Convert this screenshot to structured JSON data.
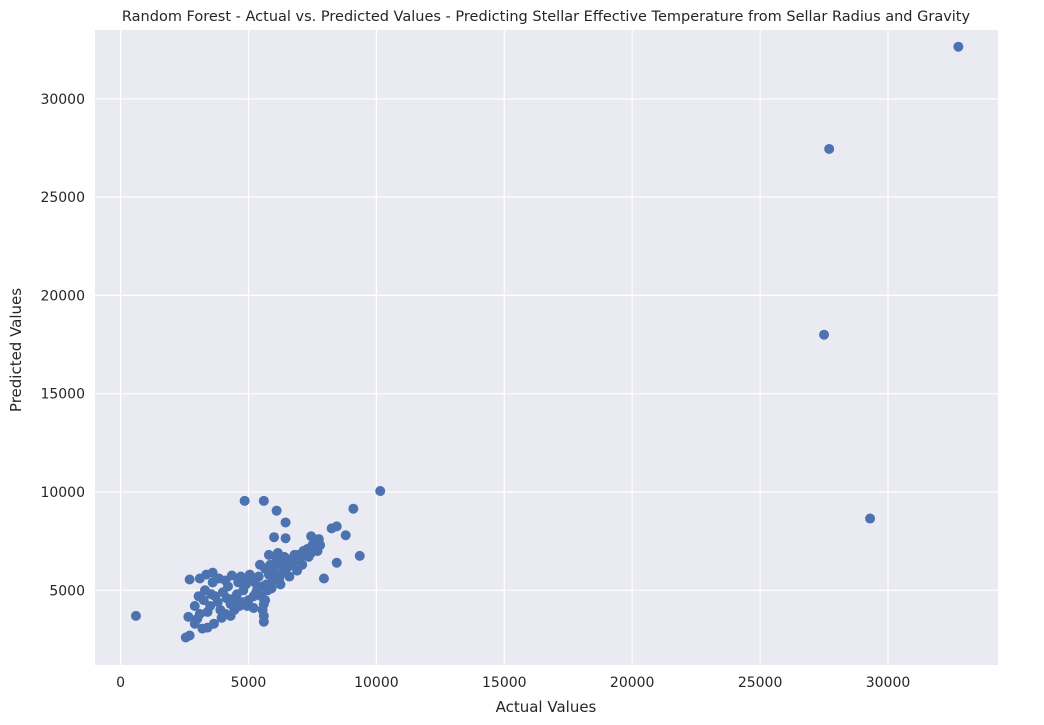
{
  "chart_data": {
    "type": "scatter",
    "title": "Random Forest - Actual vs. Predicted Values - Predicting Stellar Effective Temperature from Sellar Radius and Gravity",
    "xlabel": "Actual Values",
    "ylabel": "Predicted Values",
    "xlim": [
      -1000,
      34300
    ],
    "ylim": [
      1200,
      33500
    ],
    "xticks": [
      0,
      5000,
      10000,
      15000,
      20000,
      25000,
      30000
    ],
    "yticks": [
      5000,
      10000,
      15000,
      20000,
      25000,
      30000
    ],
    "xtick_labels": [
      "0",
      "5000",
      "10000",
      "15000",
      "20000",
      "25000",
      "30000"
    ],
    "ytick_labels": [
      "5000",
      "10000",
      "15000",
      "20000",
      "25000",
      "30000"
    ],
    "grid": true,
    "style": {
      "background": "#eaeaf2",
      "grid_color": "#ffffff",
      "marker_color": "#4c72b0"
    },
    "points": [
      [
        32750,
        32650
      ],
      [
        27700,
        27450
      ],
      [
        27500,
        18000
      ],
      [
        29300,
        8650
      ],
      [
        10150,
        10050
      ],
      [
        9100,
        9150
      ],
      [
        4850,
        9550
      ],
      [
        5600,
        9550
      ],
      [
        6100,
        9050
      ],
      [
        6450,
        8450
      ],
      [
        8450,
        8250
      ],
      [
        8250,
        8150
      ],
      [
        8800,
        7800
      ],
      [
        9350,
        6750
      ],
      [
        8450,
        6400
      ],
      [
        7950,
        5600
      ],
      [
        7450,
        7750
      ],
      [
        7750,
        7600
      ],
      [
        6000,
        7700
      ],
      [
        6450,
        7650
      ],
      [
        600,
        3700
      ],
      [
        2550,
        2600
      ],
      [
        2700,
        2700
      ],
      [
        2650,
        3650
      ],
      [
        2700,
        5550
      ],
      [
        3100,
        5600
      ],
      [
        3350,
        5800
      ],
      [
        3600,
        5900
      ],
      [
        2900,
        3300
      ],
      [
        3200,
        3050
      ],
      [
        3000,
        3550
      ],
      [
        3400,
        3900
      ],
      [
        3250,
        4500
      ],
      [
        3700,
        4700
      ],
      [
        3500,
        4200
      ],
      [
        3900,
        4000
      ],
      [
        4100,
        3800
      ],
      [
        4300,
        4300
      ],
      [
        4000,
        4900
      ],
      [
        4200,
        5200
      ],
      [
        4450,
        4600
      ],
      [
        4650,
        4200
      ],
      [
        4800,
        5000
      ],
      [
        5000,
        4500
      ],
      [
        5200,
        4100
      ],
      [
        5100,
        5500
      ],
      [
        5350,
        5100
      ],
      [
        5500,
        4700
      ],
      [
        5600,
        4300
      ],
      [
        5600,
        3400
      ],
      [
        5600,
        3700
      ],
      [
        5550,
        4000
      ],
      [
        5400,
        5700
      ],
      [
        5700,
        5300
      ],
      [
        5800,
        5800
      ],
      [
        5900,
        5100
      ],
      [
        6000,
        6200
      ],
      [
        6200,
        5600
      ],
      [
        6300,
        6300
      ],
      [
        6400,
        5900
      ],
      [
        6500,
        6600
      ],
      [
        6700,
        6300
      ],
      [
        6800,
        6800
      ],
      [
        7000,
        6500
      ],
      [
        7200,
        6900
      ],
      [
        7300,
        7100
      ],
      [
        7500,
        7300
      ],
      [
        7600,
        7200
      ],
      [
        7700,
        7000
      ],
      [
        7800,
        7300
      ],
      [
        3300,
        5000
      ],
      [
        3600,
        5400
      ],
      [
        3850,
        5600
      ],
      [
        4100,
        5500
      ],
      [
        4350,
        5750
      ],
      [
        4600,
        5400
      ],
      [
        4850,
        5600
      ],
      [
        5050,
        5800
      ],
      [
        4900,
        5300
      ],
      [
        4700,
        5700
      ],
      [
        5800,
        6800
      ],
      [
        6100,
        6600
      ],
      [
        6900,
        6000
      ],
      [
        7100,
        6300
      ],
      [
        6600,
        5700
      ],
      [
        6250,
        5300
      ],
      [
        5950,
        5500
      ],
      [
        5750,
        5000
      ],
      [
        5300,
        4900
      ],
      [
        5200,
        4700
      ],
      [
        4550,
        4800
      ],
      [
        4750,
        4400
      ],
      [
        4300,
        3700
      ],
      [
        3950,
        3600
      ],
      [
        3650,
        3300
      ],
      [
        3400,
        3100
      ],
      [
        3100,
        3800
      ],
      [
        2900,
        4200
      ],
      [
        3050,
        4700
      ],
      [
        5450,
        6300
      ],
      [
        5650,
        6100
      ],
      [
        5850,
        6300
      ],
      [
        6050,
        5800
      ],
      [
        6350,
        6000
      ],
      [
        6550,
        6200
      ],
      [
        6750,
        6500
      ],
      [
        6950,
        6800
      ],
      [
        7150,
        7000
      ],
      [
        7350,
        6700
      ],
      [
        7450,
        6900
      ],
      [
        6150,
        6900
      ],
      [
        6400,
        6700
      ],
      [
        5650,
        4500
      ],
      [
        5550,
        5200
      ],
      [
        5250,
        5400
      ],
      [
        4950,
        4200
      ],
      [
        4450,
        4000
      ],
      [
        4150,
        4600
      ],
      [
        3800,
        4400
      ],
      [
        3550,
        4800
      ]
    ]
  }
}
